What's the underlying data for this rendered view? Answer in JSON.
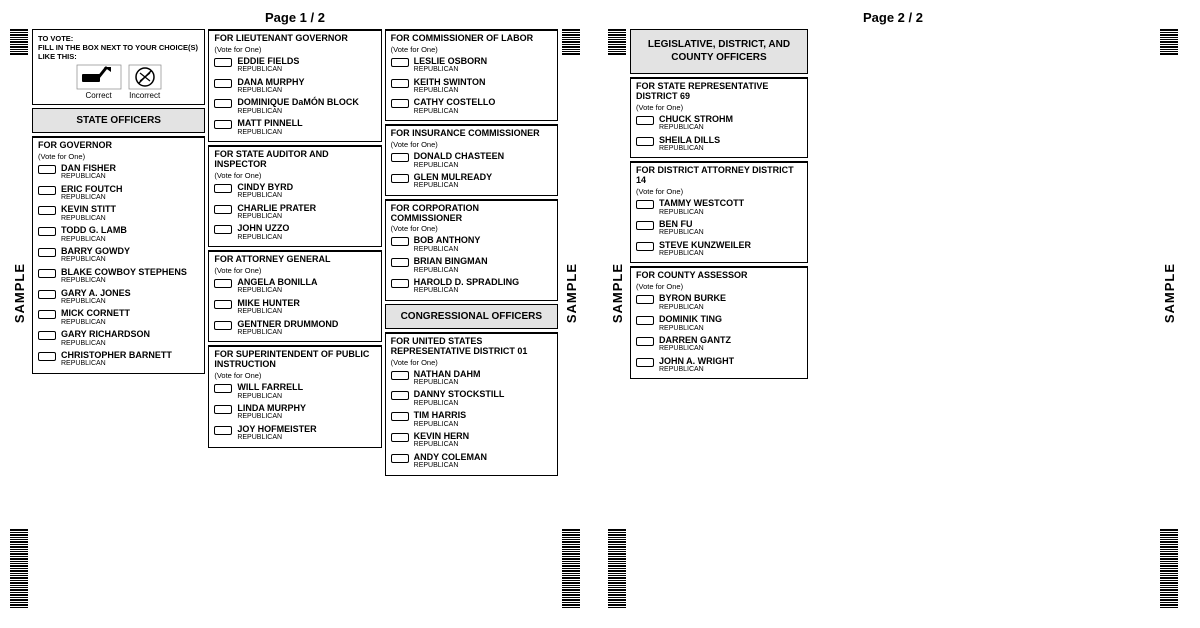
{
  "sample_label": "SAMPLE",
  "pages": [
    {
      "header": "Page  1 / 2"
    },
    {
      "header": "Page  2 / 2"
    }
  ],
  "instructions": {
    "title": "TO VOTE:",
    "text": "FILL IN THE BOX NEXT TO YOUR CHOICE(S) LIKE THIS:",
    "correct": "Correct",
    "incorrect": "Incorrect"
  },
  "sections": {
    "state_officers": "STATE OFFICERS",
    "congressional_officers": "CONGRESSIONAL OFFICERS",
    "legislative_officers": "LEGISLATIVE, DISTRICT, AND COUNTY OFFICERS"
  },
  "vote_for_one": "(Vote for One)",
  "party": "REPUBLICAN",
  "races": {
    "governor": {
      "title": "FOR GOVERNOR",
      "candidates": [
        "DAN FISHER",
        "ERIC FOUTCH",
        "KEVIN STITT",
        "TODD G. LAMB",
        "BARRY GOWDY",
        "BLAKE COWBOY STEPHENS",
        "GARY A. JONES",
        "MICK CORNETT",
        "GARY RICHARDSON",
        "CHRISTOPHER BARNETT"
      ]
    },
    "lt_governor": {
      "title": "FOR LIEUTENANT GOVERNOR",
      "candidates": [
        "EDDIE FIELDS",
        "DANA MURPHY",
        "DOMINIQUE DaMÓN BLOCK",
        "MATT PINNELL"
      ]
    },
    "auditor": {
      "title": "FOR STATE AUDITOR AND INSPECTOR",
      "candidates": [
        "CINDY BYRD",
        "CHARLIE PRATER",
        "JOHN UZZO"
      ]
    },
    "ag": {
      "title": "FOR ATTORNEY GENERAL",
      "candidates": [
        "ANGELA BONILLA",
        "MIKE HUNTER",
        "GENTNER DRUMMOND"
      ]
    },
    "spi": {
      "title": "FOR SUPERINTENDENT OF PUBLIC INSTRUCTION",
      "candidates": [
        "WILL FARRELL",
        "LINDA MURPHY",
        "JOY HOFMEISTER"
      ]
    },
    "labor": {
      "title": "FOR COMMISSIONER OF LABOR",
      "candidates": [
        "LESLIE OSBORN",
        "KEITH SWINTON",
        "CATHY COSTELLO"
      ]
    },
    "insurance": {
      "title": "FOR INSURANCE COMMISSIONER",
      "candidates": [
        "DONALD CHASTEEN",
        "GLEN MULREADY"
      ]
    },
    "corp": {
      "title": "FOR CORPORATION COMMISSIONER",
      "candidates": [
        "BOB ANTHONY",
        "BRIAN BINGMAN",
        "HAROLD D. SPRADLING"
      ]
    },
    "usrep": {
      "title": "FOR UNITED STATES REPRESENTATIVE DISTRICT 01",
      "candidates": [
        "NATHAN DAHM",
        "DANNY STOCKSTILL",
        "TIM HARRIS",
        "KEVIN HERN",
        "ANDY COLEMAN"
      ]
    },
    "staterep": {
      "title": "FOR STATE REPRESENTATIVE DISTRICT 69",
      "candidates": [
        "CHUCK STROHM",
        "SHEILA DILLS"
      ]
    },
    "da": {
      "title": "FOR DISTRICT ATTORNEY DISTRICT 14",
      "candidates": [
        "TAMMY WESTCOTT",
        "BEN FU",
        "STEVE KUNZWEILER"
      ]
    },
    "assessor": {
      "title": "FOR COUNTY ASSESSOR",
      "candidates": [
        "BYRON BURKE",
        "DOMINIK TING",
        "DARREN GANTZ",
        "JOHN A. WRIGHT"
      ]
    }
  },
  "colors": {
    "header_bg": "#e3e3e3",
    "border": "#000000",
    "text": "#000000"
  }
}
